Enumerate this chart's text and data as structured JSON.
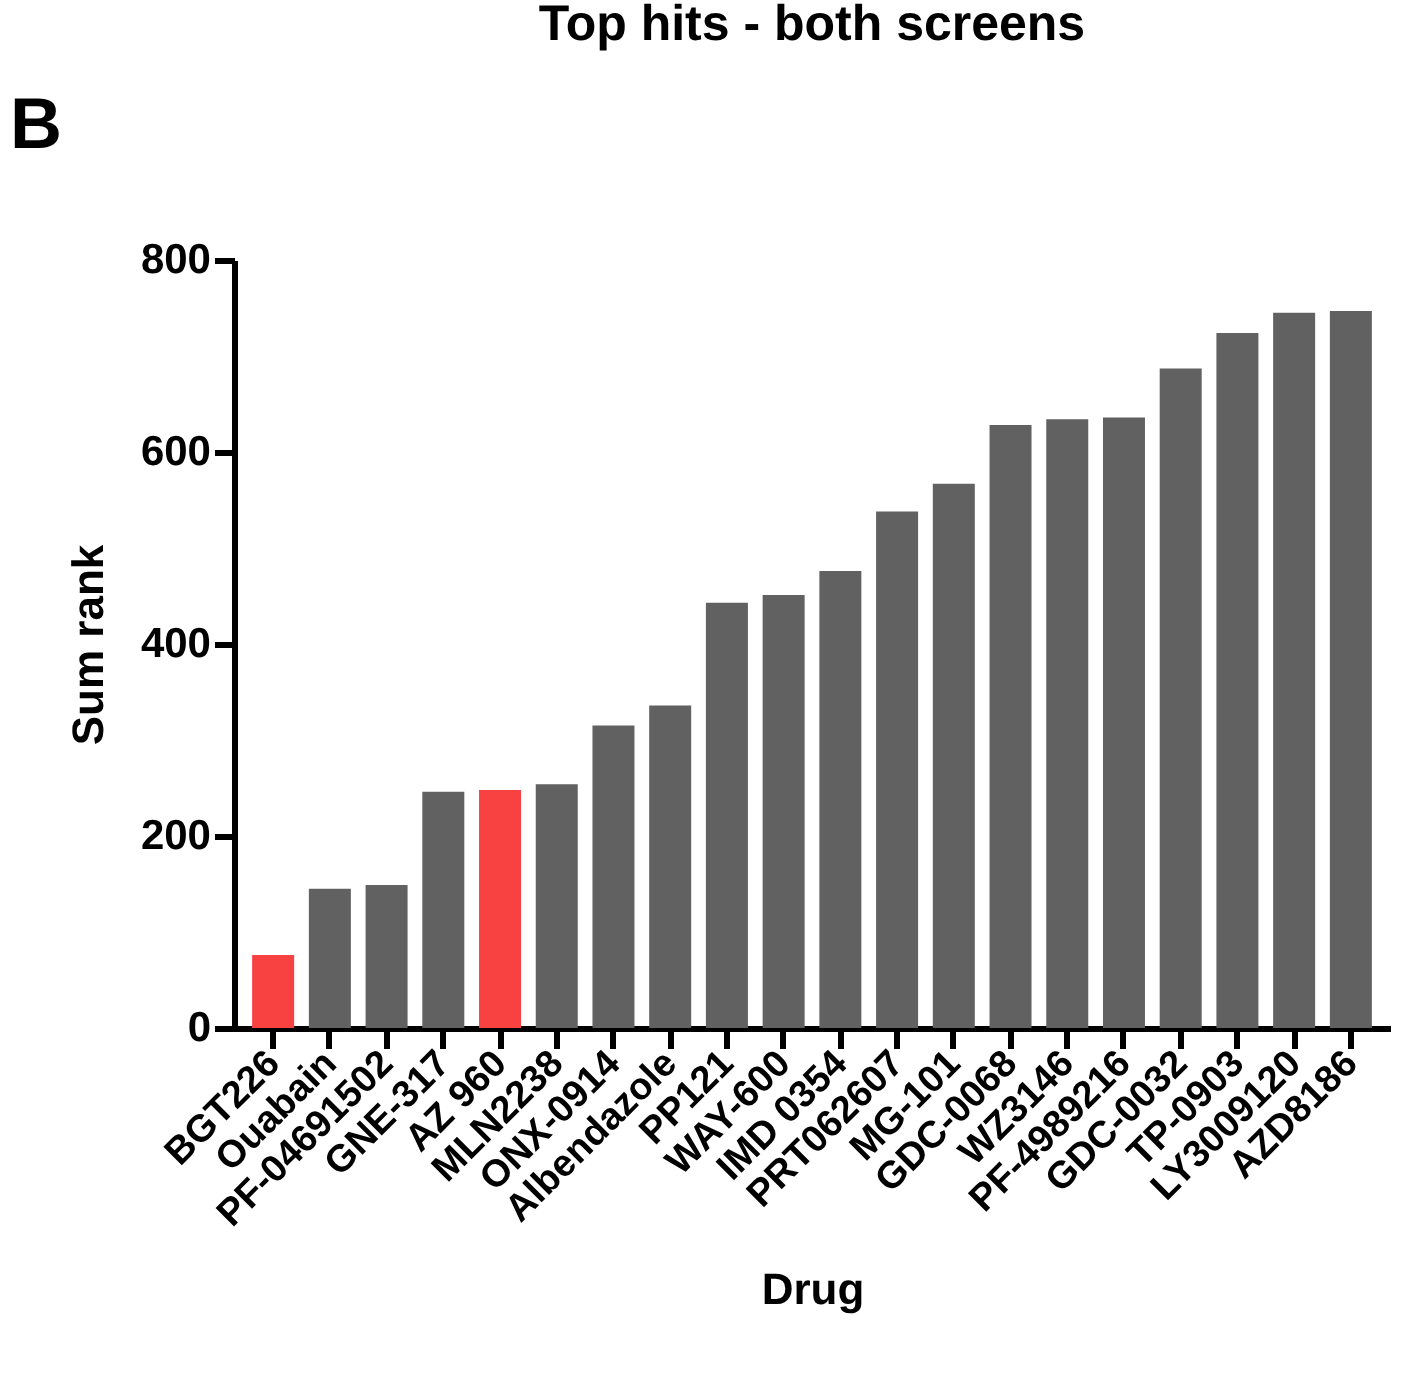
{
  "chart_data": {
    "type": "bar",
    "title": "Top hits - both screens",
    "xlabel": "Drug",
    "ylabel": "Sum rank",
    "categories": [
      "BGT226",
      "Ouabain",
      "PF-04691502",
      "GNE-317",
      "AZ 960",
      "MLN2238",
      "ONX-0914",
      "Albendazole",
      "PP121",
      "WAY-600",
      "IMD 0354",
      "PRT062607",
      "MG-101",
      "GDC-0068",
      "WZ3146",
      "PF-4989216",
      "GDC-0032",
      "TP-0903",
      "LY3009120",
      "AZD8186"
    ],
    "values": [
      76,
      145,
      149,
      246,
      248,
      254,
      315,
      336,
      443,
      451,
      476,
      538,
      567,
      628,
      634,
      636,
      687,
      724,
      745,
      747
    ],
    "colors": [
      "#f84242",
      "#616161",
      "#616161",
      "#616161",
      "#f84242",
      "#616161",
      "#616161",
      "#616161",
      "#616161",
      "#616161",
      "#616161",
      "#616161",
      "#616161",
      "#616161",
      "#616161",
      "#616161",
      "#616161",
      "#616161",
      "#616161",
      "#616161"
    ],
    "ylim": [
      0,
      800
    ],
    "yticks": [
      0,
      200,
      400,
      600,
      800
    ],
    "grid": false,
    "annotations": [
      "B"
    ]
  }
}
